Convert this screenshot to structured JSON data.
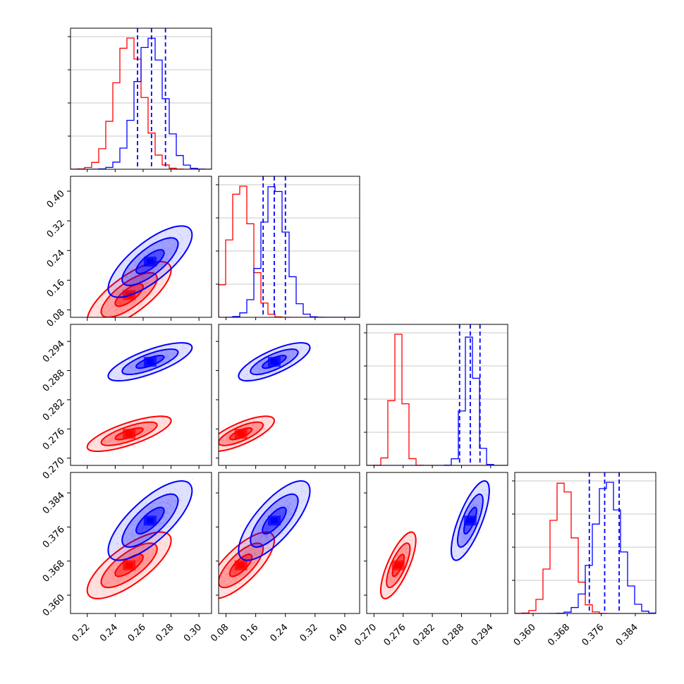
{
  "chart_data": {
    "type": "corner",
    "params": [
      {
        "ticks": [
          "0.22",
          "0.24",
          "0.26",
          "0.28",
          "0.30"
        ],
        "range": [
          0.208,
          0.309
        ]
      },
      {
        "ticks": [
          "0.08",
          "0.16",
          "0.24",
          "0.32",
          "0.40"
        ],
        "range": [
          0.06,
          0.44
        ]
      },
      {
        "ticks": [
          "0.270",
          "0.276",
          "0.282",
          "0.288",
          "0.294"
        ],
        "range": [
          0.2685,
          0.2975
        ]
      },
      {
        "ticks": [
          "0.360",
          "0.368",
          "0.376",
          "0.384"
        ],
        "range": [
          0.3557,
          0.3888
        ]
      }
    ],
    "series": [
      {
        "color": "#ff0000",
        "means": [
          0.25,
          0.12,
          0.275,
          0.367
        ],
        "sds": [
          0.01,
          0.03,
          0.0012,
          0.0026
        ],
        "corr": 0.75
      },
      {
        "color": "#0000ff",
        "means": [
          0.265,
          0.21,
          0.2898,
          0.3775
        ],
        "sds": [
          0.01,
          0.032,
          0.0013,
          0.0031
        ],
        "corr": 0.75
      }
    ],
    "quantile_lines": {
      "color": "#0000ff",
      "values": [
        [
          0.256,
          0.266,
          0.276
        ],
        [
          0.18,
          0.21,
          0.24
        ],
        [
          0.2876,
          0.2898,
          0.2918
        ],
        [
          0.3732,
          0.3768,
          0.3802
        ]
      ]
    },
    "grid": true
  }
}
